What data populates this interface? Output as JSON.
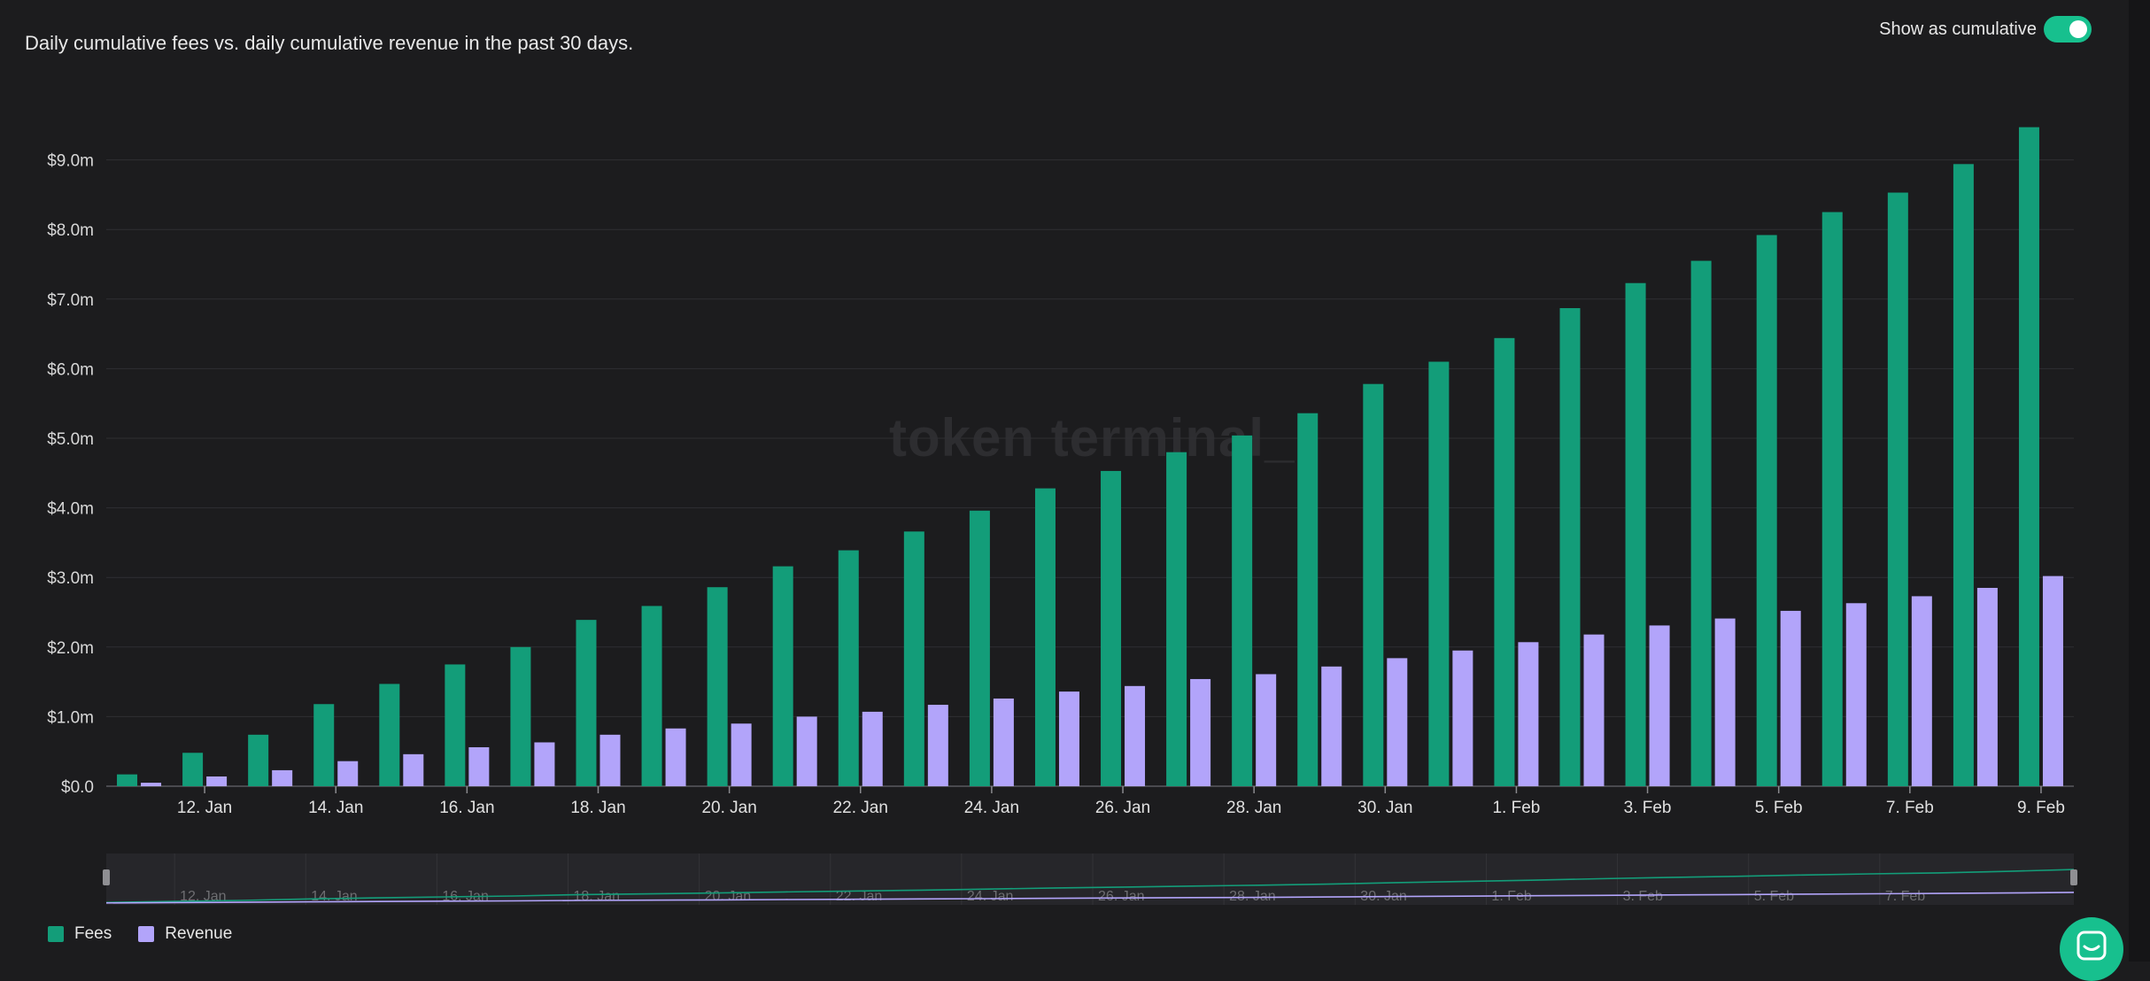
{
  "header": {
    "title": "Daily cumulative fees vs. daily cumulative revenue in the past 30 days.",
    "toggle_label": "Show as cumulative",
    "toggle_on": true
  },
  "watermark": "token terminal_",
  "legend": [
    {
      "label": "Fees",
      "color": "#139d79"
    },
    {
      "label": "Revenue",
      "color": "#b2a4fa"
    }
  ],
  "colors": {
    "fees": "#139d79",
    "revenue": "#b2a4fa",
    "accent": "#17c08e",
    "background": "#1c1c1e"
  },
  "chart_data": {
    "type": "bar",
    "categories": [
      "11. Jan",
      "12. Jan",
      "13. Jan",
      "14. Jan",
      "15. Jan",
      "16. Jan",
      "17. Jan",
      "18. Jan",
      "19. Jan",
      "20. Jan",
      "21. Jan",
      "22. Jan",
      "23. Jan",
      "24. Jan",
      "25. Jan",
      "26. Jan",
      "27. Jan",
      "28. Jan",
      "29. Jan",
      "30. Jan",
      "31. Jan",
      "1. Feb",
      "2. Feb",
      "3. Feb",
      "4. Feb",
      "5. Feb",
      "6. Feb",
      "7. Feb",
      "8. Feb",
      "9. Feb"
    ],
    "x_tick_labels": [
      "12. Jan",
      "14. Jan",
      "16. Jan",
      "18. Jan",
      "20. Jan",
      "22. Jan",
      "24. Jan",
      "26. Jan",
      "28. Jan",
      "30. Jan",
      "1. Feb",
      "3. Feb",
      "5. Feb",
      "7. Feb",
      "9. Feb"
    ],
    "navigator_tick_labels": [
      "12. Jan",
      "14. Jan",
      "16. Jan",
      "18. Jan",
      "20. Jan",
      "22. Jan",
      "24. Jan",
      "26. Jan",
      "28. Jan",
      "30. Jan",
      "1. Feb",
      "3. Feb",
      "5. Feb",
      "7. Feb"
    ],
    "series": [
      {
        "name": "Fees",
        "values": [
          0.17,
          0.48,
          0.74,
          1.18,
          1.47,
          1.75,
          2.0,
          2.39,
          2.59,
          2.86,
          3.16,
          3.39,
          3.66,
          3.96,
          4.28,
          4.53,
          4.8,
          5.04,
          5.36,
          5.78,
          6.1,
          6.44,
          6.87,
          7.23,
          7.55,
          7.92,
          8.25,
          8.53,
          8.94,
          9.47
        ]
      },
      {
        "name": "Revenue",
        "values": [
          0.05,
          0.14,
          0.23,
          0.36,
          0.46,
          0.56,
          0.63,
          0.74,
          0.83,
          0.9,
          1.0,
          1.07,
          1.17,
          1.26,
          1.36,
          1.44,
          1.54,
          1.61,
          1.72,
          1.84,
          1.95,
          2.07,
          2.18,
          2.31,
          2.41,
          2.52,
          2.63,
          2.73,
          2.85,
          3.02
        ]
      }
    ],
    "y_tick_labels": [
      "$0.0",
      "$1.0m",
      "$2.0m",
      "$3.0m",
      "$4.0m",
      "$5.0m",
      "$6.0m",
      "$7.0m",
      "$8.0m",
      "$9.0m"
    ],
    "ylim": [
      0,
      9.5
    ],
    "grid": true,
    "legend_position": "bottom-left",
    "navigator": true
  }
}
